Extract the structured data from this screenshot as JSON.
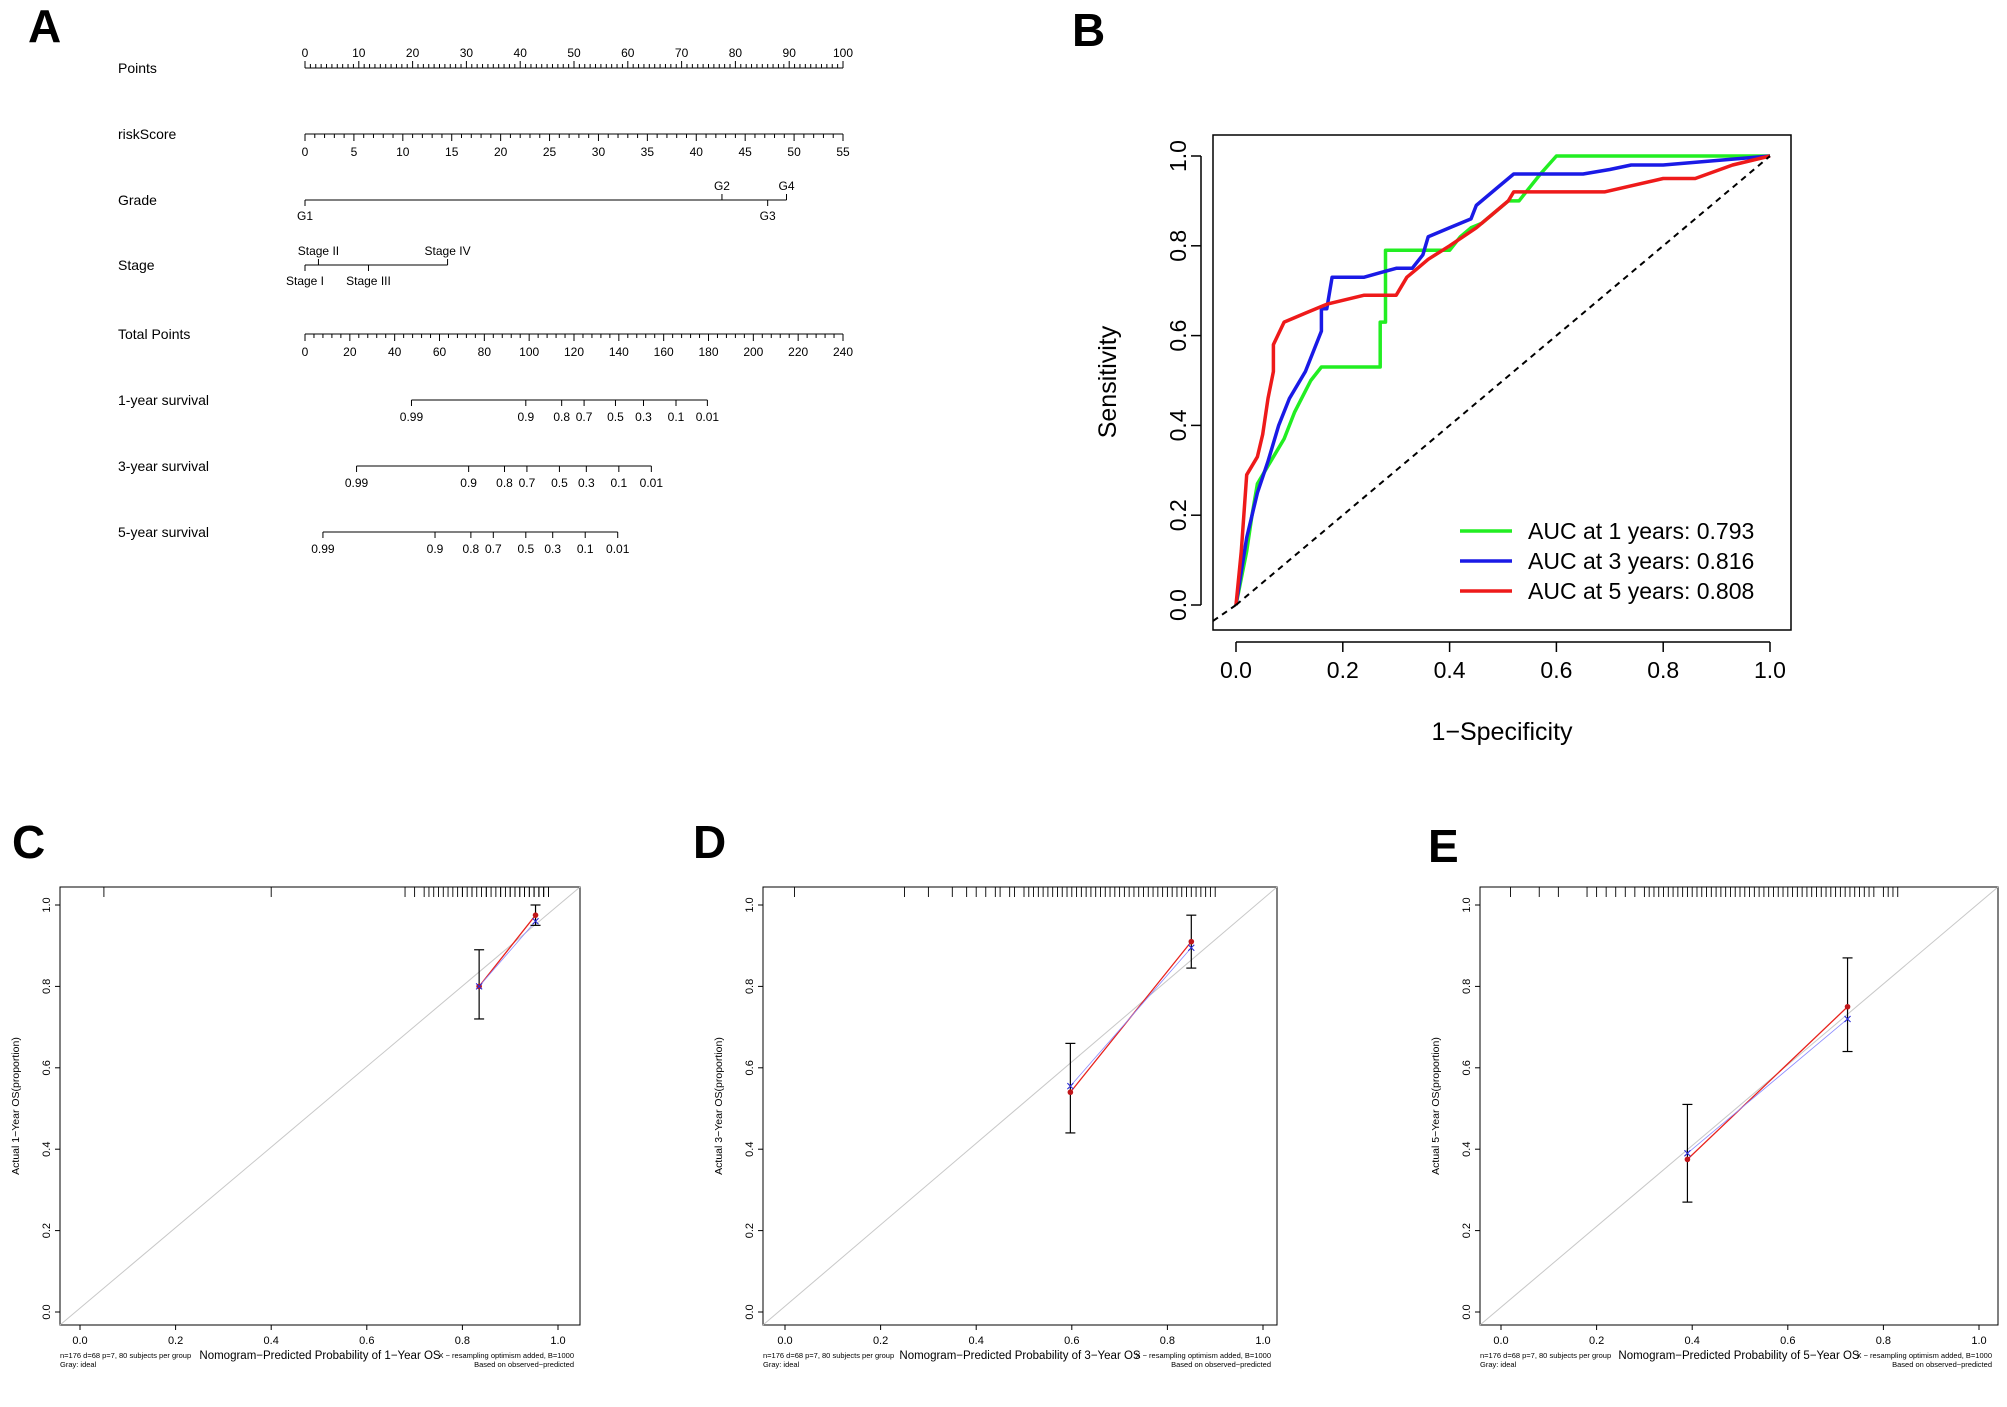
{
  "panels": {
    "a": {
      "letter": "A"
    },
    "b": {
      "letter": "B"
    },
    "c": {
      "letter": "C"
    },
    "d": {
      "letter": "D"
    },
    "e": {
      "letter": "E"
    }
  },
  "nomogram": {
    "rows": [
      {
        "label": "Points",
        "type": "scale",
        "min": 0,
        "max": 100,
        "labels": [
          0,
          10,
          20,
          30,
          40,
          50,
          60,
          70,
          80,
          90,
          100
        ],
        "minor": 1,
        "label_side": "above"
      },
      {
        "label": "riskScore",
        "type": "scale",
        "min": 0,
        "max": 55,
        "labels": [
          0,
          5,
          10,
          15,
          20,
          25,
          30,
          35,
          40,
          45,
          50,
          55
        ],
        "minor": 1,
        "label_side": "below"
      },
      {
        "label": "Grade",
        "type": "categorical",
        "points_max": 89.5,
        "ticks": [
          {
            "text": "G1",
            "points": 0,
            "side": "below"
          },
          {
            "text": "G2",
            "points": 77.5,
            "side": "above"
          },
          {
            "text": "G3",
            "points": 86,
            "side": "below"
          },
          {
            "text": "G4",
            "points": 89.5,
            "side": "above"
          }
        ]
      },
      {
        "label": "Stage",
        "type": "categorical",
        "points_max": 26.5,
        "ticks": [
          {
            "text": "Stage I",
            "points": 0,
            "side": "below"
          },
          {
            "text": "Stage II",
            "points": 2.5,
            "side": "above"
          },
          {
            "text": "Stage III",
            "points": 11.8,
            "side": "below"
          },
          {
            "text": "Stage IV",
            "points": 26.5,
            "side": "above"
          }
        ]
      },
      {
        "label": "Total Points",
        "type": "scale",
        "min": 0,
        "max": 240,
        "labels": [
          0,
          20,
          40,
          60,
          80,
          100,
          120,
          140,
          160,
          180,
          200,
          220,
          240
        ],
        "minor": 4,
        "label_side": "below"
      },
      {
        "label": "1-year survival",
        "type": "prob",
        "ticks": [
          {
            "text": "0.99",
            "points": 47.5
          },
          {
            "text": "0.9",
            "points": 98.5
          },
          {
            "text": "0.8",
            "points": 114.5
          },
          {
            "text": "0.7",
            "points": 124.5
          },
          {
            "text": "0.5",
            "points": 138.5
          },
          {
            "text": "0.3",
            "points": 151
          },
          {
            "text": "0.1",
            "points": 165.5
          },
          {
            "text": "0.01",
            "points": 179.5
          }
        ]
      },
      {
        "label": "3-year survival",
        "type": "prob",
        "ticks": [
          {
            "text": "0.99",
            "points": 23
          },
          {
            "text": "0.9",
            "points": 73
          },
          {
            "text": "0.8",
            "points": 89
          },
          {
            "text": "0.7",
            "points": 99
          },
          {
            "text": "0.5",
            "points": 113.5
          },
          {
            "text": "0.3",
            "points": 125.5
          },
          {
            "text": "0.1",
            "points": 140
          },
          {
            "text": "0.01",
            "points": 154.5
          }
        ]
      },
      {
        "label": "5-year survival",
        "type": "prob",
        "ticks": [
          {
            "text": "0.99",
            "points": 8
          },
          {
            "text": "0.9",
            "points": 58
          },
          {
            "text": "0.8",
            "points": 74
          },
          {
            "text": "0.7",
            "points": 84
          },
          {
            "text": "0.5",
            "points": 98.5
          },
          {
            "text": "0.3",
            "points": 110.5
          },
          {
            "text": "0.1",
            "points": 125
          },
          {
            "text": "0.01",
            "points": 139.5
          }
        ]
      }
    ]
  },
  "chart_data": [
    {
      "id": "roc",
      "type": "line",
      "xlabel": "1−Specificity",
      "ylabel": "Sensitivity",
      "xlim": [
        0,
        1
      ],
      "ylim": [
        0,
        1
      ],
      "xticks": [
        "0.0",
        "0.2",
        "0.4",
        "0.6",
        "0.8",
        "1.0"
      ],
      "yticks": [
        "0.0",
        "0.2",
        "0.4",
        "0.6",
        "0.8",
        "1.0"
      ],
      "legend_position": "bottom-right",
      "series": [
        {
          "name": "AUC at 1 years: 0.793",
          "color": "#22ee22",
          "points": [
            [
              0,
              0
            ],
            [
              0.02,
              0.12
            ],
            [
              0.03,
              0.2
            ],
            [
              0.04,
              0.27
            ],
            [
              0.07,
              0.33
            ],
            [
              0.09,
              0.37
            ],
            [
              0.11,
              0.43
            ],
            [
              0.14,
              0.5
            ],
            [
              0.16,
              0.53
            ],
            [
              0.27,
              0.53
            ],
            [
              0.27,
              0.63
            ],
            [
              0.28,
              0.63
            ],
            [
              0.28,
              0.79
            ],
            [
              0.33,
              0.79
            ],
            [
              0.4,
              0.79
            ],
            [
              0.42,
              0.82
            ],
            [
              0.44,
              0.84
            ],
            [
              0.46,
              0.85
            ],
            [
              0.49,
              0.88
            ],
            [
              0.51,
              0.9
            ],
            [
              0.53,
              0.9
            ],
            [
              0.55,
              0.93
            ],
            [
              0.57,
              0.96
            ],
            [
              0.6,
              1.0
            ],
            [
              0.8,
              1.0
            ],
            [
              1.0,
              1.0
            ]
          ]
        },
        {
          "name": "AUC at 3 years: 0.816",
          "color": "#1a1ae6",
          "points": [
            [
              0,
              0
            ],
            [
              0.02,
              0.15
            ],
            [
              0.04,
              0.25
            ],
            [
              0.06,
              0.32
            ],
            [
              0.08,
              0.4
            ],
            [
              0.1,
              0.46
            ],
            [
              0.13,
              0.52
            ],
            [
              0.16,
              0.61
            ],
            [
              0.16,
              0.66
            ],
            [
              0.17,
              0.66
            ],
            [
              0.18,
              0.73
            ],
            [
              0.24,
              0.73
            ],
            [
              0.27,
              0.74
            ],
            [
              0.3,
              0.75
            ],
            [
              0.33,
              0.75
            ],
            [
              0.35,
              0.78
            ],
            [
              0.36,
              0.82
            ],
            [
              0.4,
              0.84
            ],
            [
              0.44,
              0.86
            ],
            [
              0.45,
              0.89
            ],
            [
              0.49,
              0.93
            ],
            [
              0.52,
              0.96
            ],
            [
              0.57,
              0.96
            ],
            [
              0.65,
              0.96
            ],
            [
              0.7,
              0.97
            ],
            [
              0.74,
              0.98
            ],
            [
              0.8,
              0.98
            ],
            [
              0.9,
              0.99
            ],
            [
              1.0,
              1.0
            ]
          ]
        },
        {
          "name": "AUC at 5 years: 0.808",
          "color": "#ee1a1a",
          "points": [
            [
              0,
              0
            ],
            [
              0.01,
              0.12
            ],
            [
              0.02,
              0.29
            ],
            [
              0.04,
              0.33
            ],
            [
              0.05,
              0.38
            ],
            [
              0.06,
              0.46
            ],
            [
              0.07,
              0.52
            ],
            [
              0.07,
              0.58
            ],
            [
              0.09,
              0.63
            ],
            [
              0.13,
              0.65
            ],
            [
              0.17,
              0.67
            ],
            [
              0.24,
              0.69
            ],
            [
              0.3,
              0.69
            ],
            [
              0.32,
              0.73
            ],
            [
              0.34,
              0.75
            ],
            [
              0.36,
              0.77
            ],
            [
              0.4,
              0.8
            ],
            [
              0.45,
              0.84
            ],
            [
              0.48,
              0.87
            ],
            [
              0.51,
              0.9
            ],
            [
              0.52,
              0.92
            ],
            [
              0.65,
              0.92
            ],
            [
              0.69,
              0.92
            ],
            [
              0.8,
              0.95
            ],
            [
              0.86,
              0.95
            ],
            [
              0.93,
              0.98
            ],
            [
              1.0,
              1.0
            ]
          ]
        },
        {
          "name": "reference",
          "color": "#000000",
          "dashed": true,
          "points": [
            [
              0,
              0
            ],
            [
              1,
              1
            ]
          ]
        }
      ]
    },
    {
      "id": "cal1",
      "type": "scatter",
      "xlabel": "Nomogram−Predicted Probability of 1−Year OS",
      "ylabel": "Actual 1−Year OS(proportion)",
      "xlim": [
        0,
        1
      ],
      "ylim": [
        0,
        1
      ],
      "ticks": [
        "0.0",
        "0.2",
        "0.4",
        "0.6",
        "0.8",
        "1.0"
      ],
      "footnote_left": [
        "n=176 d=68 p=7, 80 subjects per group",
        "Gray: ideal"
      ],
      "footnote_right": [
        "X − resampling optimism added, B=1000",
        "Based on observed−predicted"
      ],
      "points": [
        {
          "x": 0.835,
          "y": 0.8,
          "lo": 0.72,
          "hi": 0.89,
          "bc_x": 0.835,
          "bc_y": 0.8
        },
        {
          "x": 0.953,
          "y": 0.975,
          "lo": 0.95,
          "hi": 1.0,
          "bc_x": 0.953,
          "bc_y": 0.96
        }
      ],
      "rug": [
        0.05,
        0.4,
        0.68,
        0.7,
        0.72,
        0.73,
        0.74,
        0.75,
        0.76,
        0.77,
        0.78,
        0.79,
        0.8,
        0.8,
        0.81,
        0.82,
        0.82,
        0.83,
        0.84,
        0.85,
        0.85,
        0.86,
        0.87,
        0.88,
        0.88,
        0.89,
        0.9,
        0.9,
        0.91,
        0.91,
        0.92,
        0.92,
        0.93,
        0.93,
        0.94,
        0.94,
        0.95,
        0.95,
        0.95,
        0.96,
        0.96,
        0.96,
        0.97,
        0.97,
        0.97,
        0.98,
        0.98
      ]
    },
    {
      "id": "cal3",
      "type": "scatter",
      "xlabel": "Nomogram−Predicted Probability of 3−Year OS",
      "ylabel": "Actual 3−Year OS(proportion)",
      "xlim": [
        0,
        1
      ],
      "ylim": [
        0,
        1
      ],
      "ticks": [
        "0.0",
        "0.2",
        "0.4",
        "0.6",
        "0.8",
        "1.0"
      ],
      "footnote_left": [
        "n=176 d=68 p=7, 80 subjects per group",
        "Gray: ideal"
      ],
      "footnote_right": [
        "X − resampling optimism added, B=1000",
        "Based on observed−predicted"
      ],
      "points": [
        {
          "x": 0.597,
          "y": 0.54,
          "lo": 0.44,
          "hi": 0.66,
          "bc_x": 0.597,
          "bc_y": 0.555
        },
        {
          "x": 0.85,
          "y": 0.91,
          "lo": 0.845,
          "hi": 0.975,
          "bc_x": 0.85,
          "bc_y": 0.895
        }
      ],
      "rug": [
        0.02,
        0.25,
        0.3,
        0.35,
        0.38,
        0.4,
        0.42,
        0.44,
        0.45,
        0.47,
        0.48,
        0.5,
        0.51,
        0.52,
        0.53,
        0.54,
        0.55,
        0.56,
        0.57,
        0.58,
        0.59,
        0.6,
        0.61,
        0.62,
        0.63,
        0.64,
        0.65,
        0.66,
        0.67,
        0.68,
        0.69,
        0.7,
        0.71,
        0.72,
        0.73,
        0.74,
        0.75,
        0.76,
        0.77,
        0.78,
        0.79,
        0.8,
        0.81,
        0.82,
        0.83,
        0.84,
        0.85,
        0.86,
        0.87,
        0.88,
        0.89,
        0.9
      ]
    },
    {
      "id": "cal5",
      "type": "scatter",
      "xlabel": "Nomogram−Predicted Probability of 5−Year OS",
      "ylabel": "Actual 5−Year OS(proportion)",
      "xlim": [
        0,
        1
      ],
      "ylim": [
        0,
        1
      ],
      "ticks": [
        "0.0",
        "0.2",
        "0.4",
        "0.6",
        "0.8",
        "1.0"
      ],
      "footnote_left": [
        "n=176 d=68 p=7, 80 subjects per group",
        "Gray: ideal"
      ],
      "footnote_right": [
        "X − resampling optimism added, B=1000",
        "Based on observed−predicted"
      ],
      "points": [
        {
          "x": 0.39,
          "y": 0.375,
          "lo": 0.27,
          "hi": 0.51,
          "bc_x": 0.39,
          "bc_y": 0.39
        },
        {
          "x": 0.725,
          "y": 0.75,
          "lo": 0.64,
          "hi": 0.87,
          "bc_x": 0.725,
          "bc_y": 0.72
        }
      ],
      "rug": [
        0.02,
        0.08,
        0.12,
        0.18,
        0.2,
        0.22,
        0.24,
        0.26,
        0.28,
        0.3,
        0.31,
        0.32,
        0.33,
        0.34,
        0.35,
        0.36,
        0.37,
        0.38,
        0.39,
        0.4,
        0.41,
        0.42,
        0.43,
        0.44,
        0.45,
        0.46,
        0.47,
        0.48,
        0.49,
        0.5,
        0.51,
        0.52,
        0.53,
        0.54,
        0.55,
        0.56,
        0.57,
        0.58,
        0.59,
        0.6,
        0.61,
        0.62,
        0.63,
        0.64,
        0.65,
        0.66,
        0.67,
        0.68,
        0.69,
        0.7,
        0.71,
        0.72,
        0.73,
        0.74,
        0.75,
        0.76,
        0.77,
        0.78,
        0.8,
        0.81,
        0.82,
        0.83
      ]
    }
  ]
}
